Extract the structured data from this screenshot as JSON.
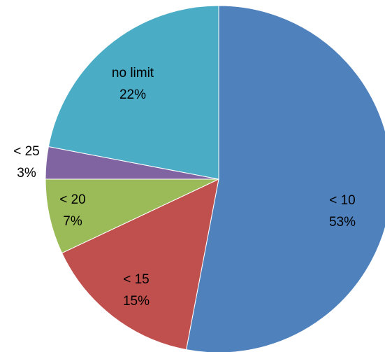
{
  "chart_data": {
    "type": "pie",
    "title": "",
    "start_angle_deg": 0,
    "direction": "clockwise",
    "slices": [
      {
        "label": "< 10",
        "pct_label": "53%",
        "value": 53,
        "color": "#4F81BD"
      },
      {
        "label": "< 15",
        "pct_label": "15%",
        "value": 15,
        "color": "#C0504D"
      },
      {
        "label": "< 20",
        "pct_label": "7%",
        "value": 7,
        "color": "#9BBB59"
      },
      {
        "label": "< 25",
        "pct_label": "3%",
        "value": 3,
        "color": "#8064A2"
      },
      {
        "label": "no limit",
        "pct_label": "22%",
        "value": 22,
        "color": "#4BACC6"
      }
    ],
    "legend": "none"
  }
}
